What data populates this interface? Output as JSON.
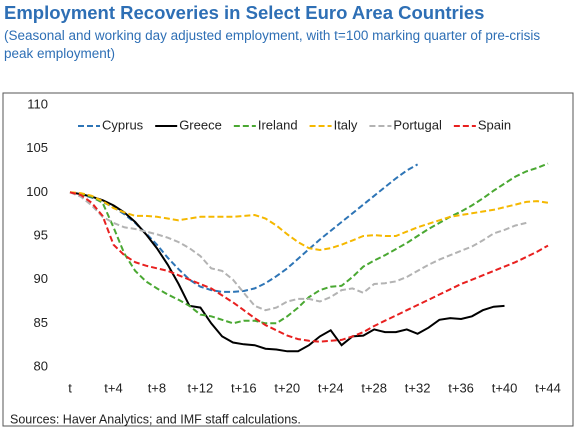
{
  "chart_data": {
    "type": "line",
    "title": "Employment Recoveries in Select Euro Area Countries",
    "subtitle": "(Seasonal and working day adjusted employment, with t=100 marking quarter of pre-crisis peak employment)",
    "source": "Sources: Haver Analytics; and IMF staff calculations.",
    "x": [
      0,
      1,
      2,
      3,
      4,
      5,
      6,
      7,
      8,
      9,
      10,
      11,
      12,
      13,
      14,
      15,
      16,
      17,
      18,
      19,
      20,
      21,
      22,
      23,
      24,
      25,
      26,
      27,
      28,
      29,
      30,
      31,
      32,
      33,
      34,
      35,
      36,
      37,
      38,
      39,
      40,
      41,
      42,
      43,
      44
    ],
    "xlim": [
      0,
      44
    ],
    "xticks": [
      {
        "value": 0,
        "label": "t"
      },
      {
        "value": 4,
        "label": "t+4"
      },
      {
        "value": 8,
        "label": "t+8"
      },
      {
        "value": 12,
        "label": "t+12"
      },
      {
        "value": 16,
        "label": "t+16"
      },
      {
        "value": 20,
        "label": "t+20"
      },
      {
        "value": 24,
        "label": "t+24"
      },
      {
        "value": 28,
        "label": "t+28"
      },
      {
        "value": 32,
        "label": "t+32"
      },
      {
        "value": 36,
        "label": "t+36"
      },
      {
        "value": 40,
        "label": "t+40"
      },
      {
        "value": 44,
        "label": "t+44"
      }
    ],
    "ylim": [
      80,
      110
    ],
    "yticks": [
      80,
      85,
      90,
      95,
      100,
      105,
      110
    ],
    "legend": "top",
    "series": [
      {
        "name": "Cyprus",
        "color": "#2e75b6",
        "dashed": true,
        "values": [
          100,
          99.8,
          99.4,
          98.9,
          98.3,
          97.5,
          96.5,
          95.3,
          94,
          92.5,
          91.2,
          90,
          89.2,
          88.8,
          88.6,
          88.6,
          88.7,
          89,
          89.6,
          90.4,
          91.3,
          92.4,
          93.5,
          94.6,
          95.6,
          96.6,
          97.6,
          98.6,
          99.6,
          100.6,
          101.6,
          102.5,
          103.2,
          null,
          null,
          null,
          null,
          null,
          null,
          null,
          null,
          null,
          null,
          null,
          null
        ]
      },
      {
        "name": "Greece",
        "color": "#000000",
        "dashed": false,
        "values": [
          100,
          99.8,
          99.5,
          99.1,
          98.5,
          97.7,
          96.6,
          95.2,
          93.6,
          91.7,
          89.5,
          87,
          86.8,
          85,
          83.5,
          82.8,
          82.6,
          82.5,
          82.1,
          82,
          81.8,
          81.8,
          82.5,
          83.5,
          84.2,
          82.5,
          83.5,
          83.6,
          84.3,
          84,
          84,
          84.3,
          83.8,
          84.5,
          85.4,
          85.6,
          85.5,
          85.8,
          86.5,
          86.9,
          87,
          null,
          null,
          null,
          null
        ]
      },
      {
        "name": "Ireland",
        "color": "#4aa832",
        "dashed": true,
        "values": [
          100,
          99.8,
          99.5,
          98.8,
          96,
          93,
          91,
          89.8,
          89,
          88.3,
          87.7,
          87,
          86,
          85.8,
          85.4,
          85,
          85.3,
          85.3,
          85,
          85,
          85.8,
          86.8,
          88,
          88.8,
          89.2,
          89.3,
          90.3,
          91.5,
          92.2,
          92.8,
          93.5,
          94.2,
          95,
          95.8,
          96.5,
          97.2,
          97.8,
          98.5,
          99.3,
          100.2,
          101,
          101.8,
          102.4,
          102.8,
          103.3
        ]
      },
      {
        "name": "Italy",
        "color": "#f5b800",
        "dashed": true,
        "values": [
          100,
          99.9,
          99.6,
          99,
          98.2,
          97.7,
          97.3,
          97.3,
          97.2,
          97,
          96.8,
          97,
          97.2,
          97.2,
          97.2,
          97.2,
          97.3,
          97.4,
          97,
          96.2,
          95.2,
          94.3,
          93.6,
          93.4,
          93.6,
          94,
          94.5,
          95,
          95.1,
          95,
          95,
          95.5,
          96,
          96.4,
          96.8,
          97.2,
          97.4,
          97.6,
          97.8,
          98,
          98.3,
          98.6,
          98.9,
          99,
          98.8
        ]
      },
      {
        "name": "Portugal",
        "color": "#b3b3b3",
        "dashed": true,
        "values": [
          100,
          99.5,
          98.5,
          97.2,
          96.5,
          96,
          95.8,
          95.5,
          95.2,
          94.8,
          94.3,
          93.6,
          92.7,
          91.3,
          91,
          90,
          88.5,
          87,
          86.5,
          86.8,
          87.5,
          87.8,
          87.8,
          87.5,
          88,
          88.8,
          89,
          88.5,
          89.5,
          89.6,
          89.8,
          90.3,
          91,
          91.7,
          92.3,
          92.8,
          93.3,
          93.8,
          94.5,
          95.3,
          95.7,
          96.2,
          96.5,
          null,
          null
        ]
      },
      {
        "name": "Spain",
        "color": "#e8201f",
        "dashed": true,
        "values": [
          100,
          99.7,
          98.8,
          97.3,
          94,
          92.8,
          92,
          91.6,
          91.3,
          91,
          90.5,
          90,
          89.5,
          89,
          88.2,
          87.4,
          86.5,
          85.6,
          84.8,
          84.2,
          83.6,
          83.2,
          83,
          82.9,
          83,
          83.1,
          83.5,
          84,
          84.7,
          85.3,
          85.9,
          86.5,
          87.1,
          87.7,
          88.3,
          88.9,
          89.5,
          90,
          90.5,
          91,
          91.5,
          92,
          92.6,
          93.2,
          93.9
        ]
      }
    ]
  }
}
